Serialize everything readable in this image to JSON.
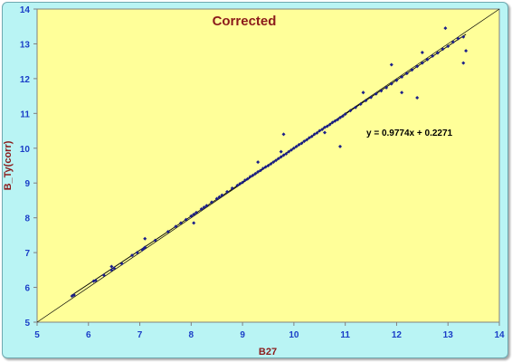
{
  "chart_data": {
    "type": "scatter",
    "title": "Corrected",
    "xlabel": "B27",
    "ylabel": "B_Ty(corr)",
    "xlim": [
      5,
      14
    ],
    "ylim": [
      5,
      14
    ],
    "xticks": [
      5,
      6,
      7,
      8,
      9,
      10,
      11,
      12,
      13,
      14
    ],
    "yticks": [
      5,
      6,
      7,
      8,
      9,
      10,
      11,
      12,
      13,
      14
    ],
    "grid": false,
    "annotation": "y = 0.9774x + 0.2271",
    "trendline": {
      "slope": 0.9774,
      "intercept": 0.2271
    },
    "reference_line": "y = x",
    "colors": {
      "plot_area": "#ffff99",
      "frame": "#b9f4f4",
      "points": "#1b1f8a",
      "tick_labels": "#1a3ec7",
      "titles": "#8b1a1a"
    },
    "series": [
      {
        "x": [
          5.68,
          5.72,
          6.1,
          6.14,
          6.3,
          6.45,
          6.5,
          6.65,
          6.85,
          6.95,
          7.05,
          7.08,
          7.1,
          7.3,
          7.55,
          7.7,
          7.8,
          7.9,
          8.0,
          8.05,
          8.1,
          8.2,
          8.25,
          8.3,
          8.4,
          8.5,
          8.55,
          8.6,
          8.7,
          8.8,
          8.9,
          8.95,
          9.0,
          9.05,
          9.1,
          9.15,
          9.2,
          9.25,
          9.3,
          9.35,
          9.4,
          9.45,
          9.5,
          9.55,
          9.6,
          9.65,
          9.7,
          9.75,
          9.8,
          9.85,
          9.9,
          9.95,
          10.0,
          10.05,
          10.1,
          10.15,
          10.2,
          10.25,
          10.3,
          10.35,
          10.4,
          10.45,
          10.5,
          10.55,
          10.6,
          10.65,
          10.7,
          10.75,
          10.8,
          10.85,
          10.9,
          10.95,
          11.0,
          11.1,
          11.2,
          11.3,
          11.4,
          11.5,
          11.6,
          11.7,
          11.8,
          11.9,
          12.0,
          12.1,
          12.2,
          12.3,
          12.4,
          12.5,
          12.6,
          12.7,
          12.8,
          12.9,
          13.0,
          13.1,
          13.2,
          13.3,
          9.3,
          9.8,
          10.9,
          11.9,
          12.4,
          12.95,
          13.3,
          13.35,
          8.05,
          7.1,
          6.45,
          11.35,
          12.1,
          12.5,
          9.75,
          10.6
        ],
        "y": [
          5.75,
          5.78,
          6.18,
          6.2,
          6.35,
          6.5,
          6.55,
          6.68,
          6.92,
          7.0,
          7.08,
          7.12,
          7.15,
          7.35,
          7.6,
          7.75,
          7.85,
          7.95,
          8.05,
          8.1,
          8.15,
          8.25,
          8.3,
          8.35,
          8.45,
          8.55,
          8.6,
          8.65,
          8.75,
          8.85,
          8.93,
          8.98,
          9.02,
          9.08,
          9.12,
          9.18,
          9.22,
          9.27,
          9.32,
          9.36,
          9.42,
          9.46,
          9.5,
          9.55,
          9.6,
          9.65,
          9.7,
          9.75,
          9.8,
          9.84,
          9.9,
          9.95,
          10.0,
          10.05,
          10.1,
          10.14,
          10.2,
          10.24,
          10.3,
          10.34,
          10.4,
          10.44,
          10.5,
          10.54,
          10.6,
          10.63,
          10.68,
          10.74,
          10.78,
          10.82,
          10.88,
          10.92,
          10.98,
          11.08,
          11.17,
          11.27,
          11.37,
          11.46,
          11.56,
          11.65,
          11.74,
          11.85,
          11.95,
          12.05,
          12.15,
          12.25,
          12.35,
          12.45,
          12.55,
          12.65,
          12.74,
          12.85,
          12.93,
          13.05,
          13.15,
          13.2,
          9.6,
          10.4,
          10.05,
          12.4,
          11.45,
          13.45,
          12.45,
          12.8,
          7.85,
          7.4,
          6.6,
          11.6,
          11.6,
          12.75,
          9.9,
          10.45
        ]
      }
    ]
  }
}
